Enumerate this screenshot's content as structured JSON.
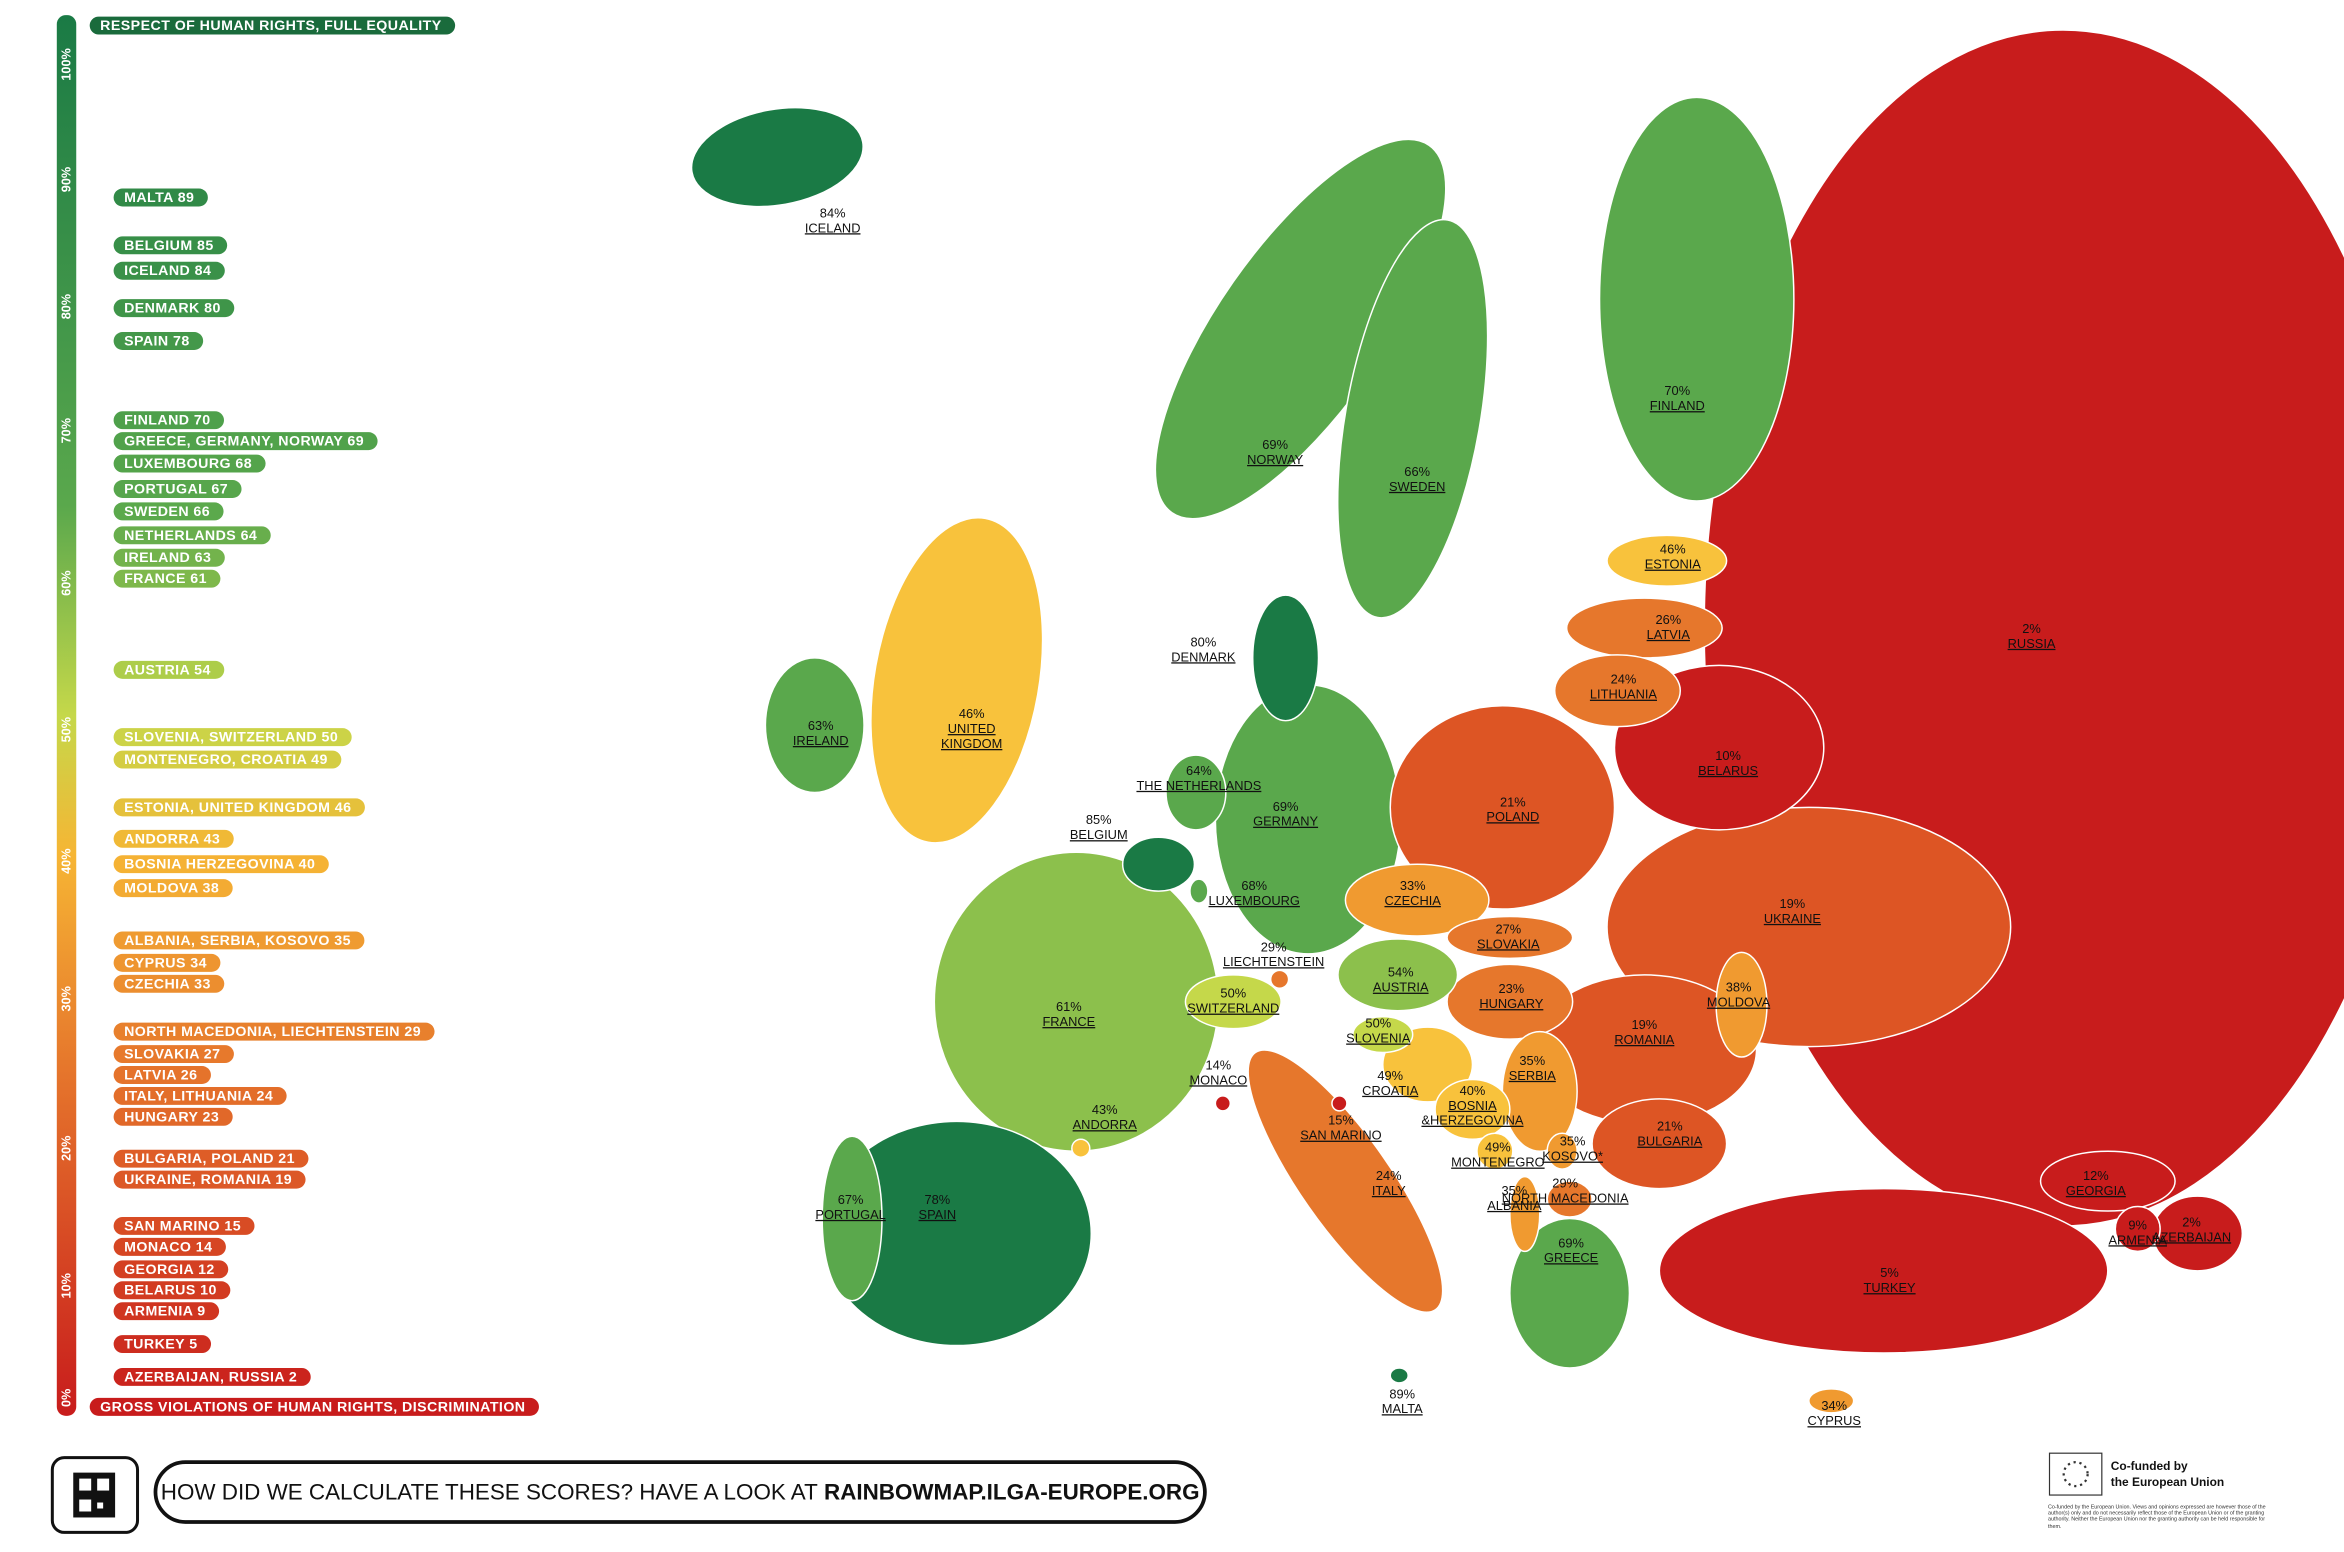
{
  "legend": {
    "top": "RESPECT OF HUMAN RIGHTS, FULL EQUALITY",
    "bottom": "GROSS VIOLATIONS OF HUMAN RIGHTS, DISCRIMINATION",
    "scale": [
      "100%",
      "90%",
      "80%",
      "70%",
      "60%",
      "50%",
      "40%",
      "30%",
      "20%",
      "10%",
      "0%"
    ],
    "entries": [
      "MALTA 89",
      "BELGIUM 85",
      "ICELAND 84",
      "DENMARK 80",
      "SPAIN 78",
      "FINLAND 70",
      "GREECE, GERMANY, NORWAY 69",
      "LUXEMBOURG 68",
      "PORTUGAL 67",
      "SWEDEN 66",
      "NETHERLANDS 64",
      "IRELAND 63",
      "FRANCE 61",
      "AUSTRIA 54",
      "SLOVENIA, SWITZERLAND 50",
      "MONTENEGRO, CROATIA 49",
      "ESTONIA, UNITED KINGDOM 46",
      "ANDORRA 43",
      "BOSNIA HERZEGOVINA 40",
      "MOLDOVA 38",
      "ALBANIA, SERBIA, KOSOVO 35",
      "CYPRUS 34",
      "CZECHIA 33",
      "NORTH MACEDONIA, LIECHTENSTEIN 29",
      "SLOVAKIA 27",
      "LATVIA 26",
      "ITALY, LITHUANIA 24",
      "HUNGARY 23",
      "BULGARIA, POLAND 21",
      "UKRAINE, ROMANIA 19",
      "SAN MARINO 15",
      "MONACO 14",
      "GEORGIA 12",
      "BELARUS 10",
      "ARMENIA 9",
      "TURKEY 5",
      "AZERBAIJAN, RUSSIA 2"
    ]
  },
  "map": {
    "countries": [
      {
        "pct": "84%",
        "name": [
          "ICELAND"
        ]
      },
      {
        "pct": "69%",
        "name": [
          "NORWAY"
        ]
      },
      {
        "pct": "66%",
        "name": [
          "SWEDEN"
        ]
      },
      {
        "pct": "70%",
        "name": [
          "FINLAND"
        ]
      },
      {
        "pct": "46%",
        "name": [
          "ESTONIA"
        ]
      },
      {
        "pct": "26%",
        "name": [
          "LATVIA"
        ]
      },
      {
        "pct": "24%",
        "name": [
          "LITHUANIA"
        ]
      },
      {
        "pct": "2%",
        "name": [
          "RUSSIA"
        ]
      },
      {
        "pct": "80%",
        "name": [
          "DENMARK"
        ]
      },
      {
        "pct": "63%",
        "name": [
          "IRELAND"
        ]
      },
      {
        "pct": "46%",
        "name": [
          "UNITED",
          "KINGDOM"
        ]
      },
      {
        "pct": "10%",
        "name": [
          "BELARUS"
        ]
      },
      {
        "pct": "21%",
        "name": [
          "POLAND"
        ]
      },
      {
        "pct": "69%",
        "name": [
          "GERMANY"
        ]
      },
      {
        "pct": "64%",
        "name": [
          "THE NETHERLANDS"
        ]
      },
      {
        "pct": "85%",
        "name": [
          "BELGIUM"
        ]
      },
      {
        "pct": "68%",
        "name": [
          "LUXEMBOURG"
        ]
      },
      {
        "pct": "33%",
        "name": [
          "CZECHIA"
        ]
      },
      {
        "pct": "19%",
        "name": [
          "UKRAINE"
        ]
      },
      {
        "pct": "27%",
        "name": [
          "SLOVAKIA"
        ]
      },
      {
        "pct": "29%",
        "name": [
          "LIECHTENSTEIN"
        ]
      },
      {
        "pct": "54%",
        "name": [
          "AUSTRIA"
        ]
      },
      {
        "pct": "50%",
        "name": [
          "SWITZERLAND"
        ]
      },
      {
        "pct": "23%",
        "name": [
          "HUNGARY"
        ]
      },
      {
        "pct": "38%",
        "name": [
          "MOLDOVA"
        ]
      },
      {
        "pct": "61%",
        "name": [
          "FRANCE"
        ]
      },
      {
        "pct": "50%",
        "name": [
          "SLOVENIA"
        ]
      },
      {
        "pct": "19%",
        "name": [
          "ROMANIA"
        ]
      },
      {
        "pct": "14%",
        "name": [
          "MONACO"
        ]
      },
      {
        "pct": "49%",
        "name": [
          "CROATIA"
        ]
      },
      {
        "pct": "35%",
        "name": [
          "SERBIA"
        ]
      },
      {
        "pct": "40%",
        "name": [
          "BOSNIA",
          "&HERZEGOVINA"
        ]
      },
      {
        "pct": "43%",
        "name": [
          "ANDORRA"
        ]
      },
      {
        "pct": "15%",
        "name": [
          "SAN MARINO"
        ]
      },
      {
        "pct": "21%",
        "name": [
          "BULGARIA"
        ]
      },
      {
        "pct": "49%",
        "name": [
          "MONTENEGRO"
        ]
      },
      {
        "pct": "35%",
        "name": [
          "KOSOVO*"
        ]
      },
      {
        "pct": "24%",
        "name": [
          "ITALY"
        ]
      },
      {
        "pct": "12%",
        "name": [
          "GEORGIA"
        ]
      },
      {
        "pct": "35%",
        "name": [
          "ALBANIA"
        ]
      },
      {
        "pct": "29%",
        "name": [
          "NORTH MACEDONIA"
        ]
      },
      {
        "pct": "67%",
        "name": [
          "PORTUGAL"
        ]
      },
      {
        "pct": "78%",
        "name": [
          "SPAIN"
        ]
      },
      {
        "pct": "2%",
        "name": [
          "AZERBAIJAN"
        ]
      },
      {
        "pct": "9%",
        "name": [
          "ARMENIA"
        ]
      },
      {
        "pct": "69%",
        "name": [
          "GREECE"
        ]
      },
      {
        "pct": "5%",
        "name": [
          "TURKEY"
        ]
      },
      {
        "pct": "89%",
        "name": [
          "MALTA"
        ]
      },
      {
        "pct": "34%",
        "name": [
          "CYPRUS"
        ]
      }
    ]
  },
  "footer": {
    "question": "HOW DID WE CALCULATE THESE SCORES? HAVE A LOOK AT",
    "link": "RAINBOWMAP.ILGA-EUROPE.ORG"
  },
  "eu": {
    "title": [
      "Co-funded by",
      "the European Union"
    ],
    "disclaimer": "Co-funded by the European Union. Views and opinions expressed are however those of the author(s) only and do not necessarily reflect those of the European Union or of the granting authority. Neither the European Union nor the granting authority can be held responsible for them."
  }
}
